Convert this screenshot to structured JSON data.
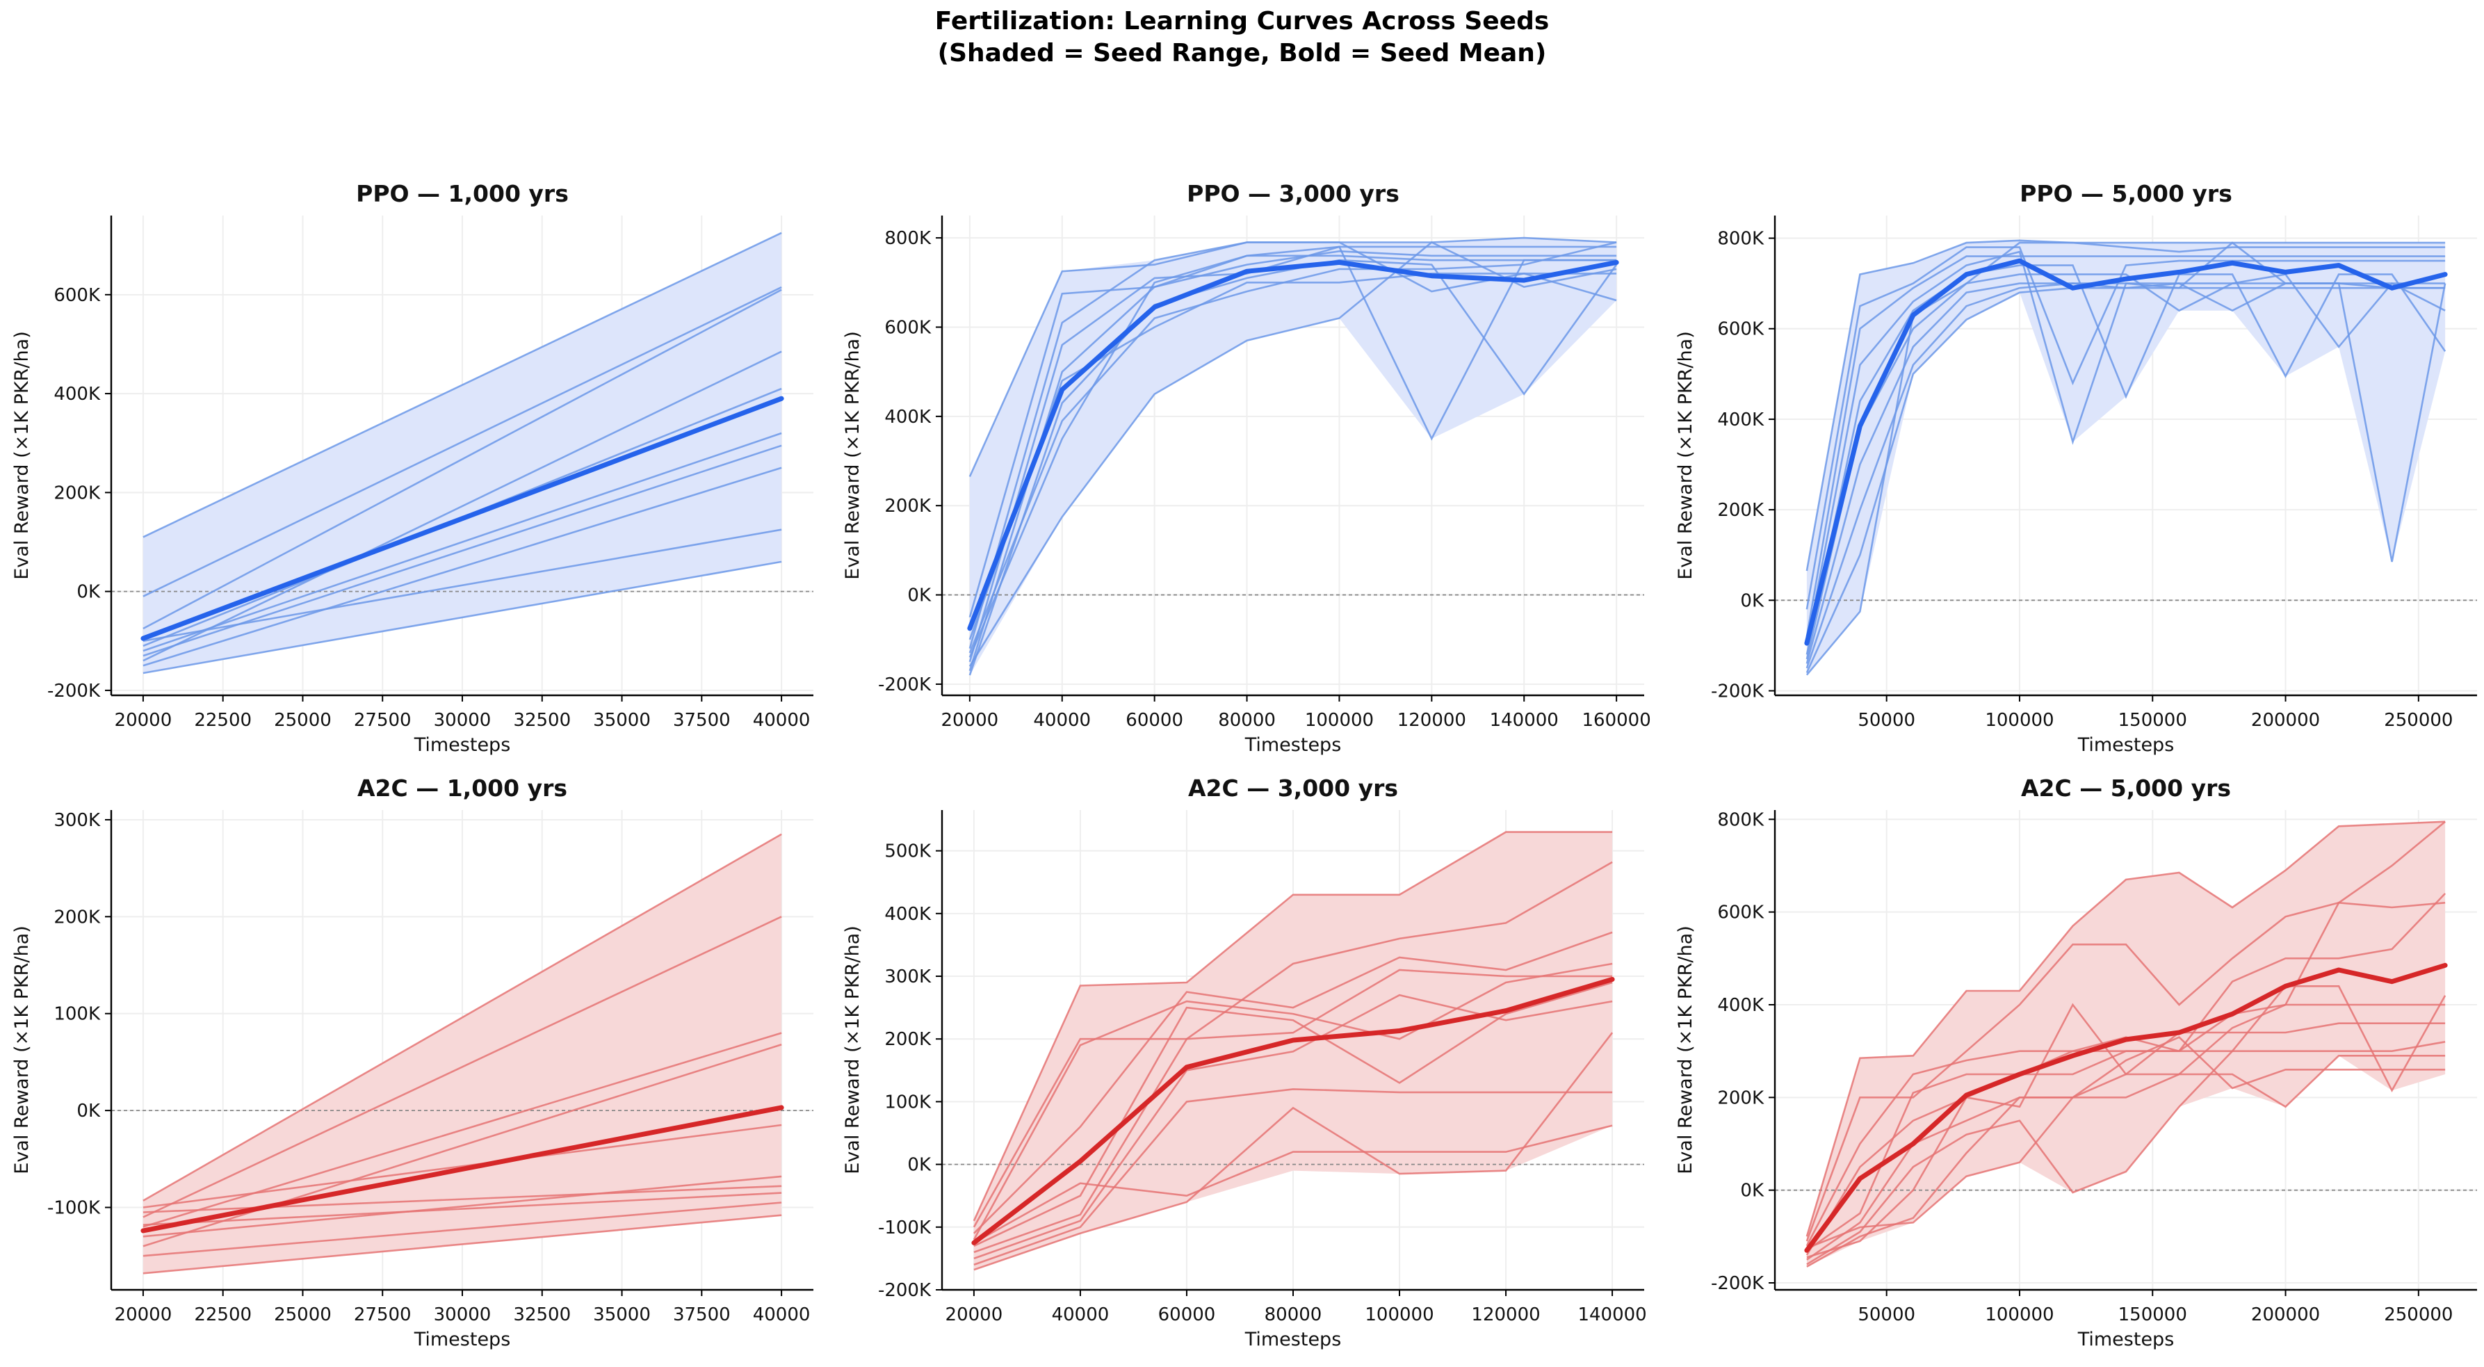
{
  "figure": {
    "title_lines": [
      "Fertilization: Learning Curves Across Seeds",
      "(Shaded = Seed Range, Bold = Seed Mean)"
    ]
  },
  "colors": {
    "ppo_line": "#2563eb",
    "ppo_seed": "#6b98e8",
    "ppo_fill": "#dbe4fb",
    "a2c_line": "#d62728",
    "a2c_seed": "#e57373",
    "a2c_fill": "#f7d6d6",
    "grid": "#eeeeee",
    "zero_line": "#888888"
  },
  "chart_data": [
    {
      "type": "line",
      "algo": "ppo",
      "title": "PPO — 1,000 yrs",
      "xlabel": "Timesteps",
      "ylabel": "Eval Reward (×1K PKR/ha)",
      "xlim": [
        19000,
        41000
      ],
      "ylim": [
        -210000,
        760000
      ],
      "xticks": [
        20000,
        22500,
        25000,
        27500,
        30000,
        32500,
        35000,
        37500,
        40000
      ],
      "xtick_labels": [
        "20000",
        "22500",
        "25000",
        "27500",
        "30000",
        "32500",
        "35000",
        "37500",
        "40000"
      ],
      "yticks": [
        -200000,
        0,
        200000,
        400000,
        600000
      ],
      "ytick_labels": [
        "-200K",
        "0K",
        "200K",
        "400K",
        "600K"
      ],
      "x": [
        20000,
        40000
      ],
      "range_low": [
        -165000,
        60000
      ],
      "range_high": [
        110000,
        725000
      ],
      "mean": [
        -95000,
        390000
      ],
      "seeds": [
        [
          110000,
          725000
        ],
        [
          -10000,
          615000
        ],
        [
          -75000,
          610000
        ],
        [
          -140000,
          485000
        ],
        [
          -110000,
          410000
        ],
        [
          -120000,
          320000
        ],
        [
          -130000,
          295000
        ],
        [
          -150000,
          250000
        ],
        [
          -100000,
          125000
        ],
        [
          -165000,
          60000
        ]
      ]
    },
    {
      "type": "line",
      "algo": "ppo",
      "title": "PPO — 3,000 yrs",
      "xlabel": "Timesteps",
      "ylabel": "Eval Reward (×1K PKR/ha)",
      "xlim": [
        14000,
        166000
      ],
      "ylim": [
        -225000,
        850000
      ],
      "xticks": [
        20000,
        40000,
        60000,
        80000,
        100000,
        120000,
        140000,
        160000
      ],
      "xtick_labels": [
        "20000",
        "40000",
        "60000",
        "80000",
        "100000",
        "120000",
        "140000",
        "160000"
      ],
      "yticks": [
        -200000,
        0,
        200000,
        400000,
        600000,
        800000
      ],
      "ytick_labels": [
        "-200K",
        "0K",
        "200K",
        "400K",
        "600K",
        "800K"
      ],
      "x": [
        20000,
        40000,
        60000,
        80000,
        100000,
        120000,
        140000,
        160000
      ],
      "range_low": [
        -180000,
        175000,
        450000,
        570000,
        620000,
        350000,
        450000,
        660000
      ],
      "range_high": [
        265000,
        725000,
        750000,
        790000,
        790000,
        790000,
        800000,
        790000
      ],
      "mean": [
        -75000,
        460000,
        645000,
        725000,
        745000,
        715000,
        705000,
        745000
      ],
      "seeds": [
        [
          265000,
          725000,
          740000,
          790000,
          790000,
          790000,
          800000,
          790000
        ],
        [
          -50000,
          675000,
          690000,
          760000,
          760000,
          750000,
          750000,
          750000
        ],
        [
          -120000,
          610000,
          750000,
          790000,
          790000,
          680000,
          720000,
          720000
        ],
        [
          -150000,
          560000,
          710000,
          720000,
          780000,
          350000,
          750000,
          750000
        ],
        [
          -100000,
          480000,
          600000,
          700000,
          700000,
          720000,
          720000,
          660000
        ],
        [
          -180000,
          430000,
          650000,
          710000,
          750000,
          740000,
          450000,
          740000
        ],
        [
          -160000,
          175000,
          450000,
          570000,
          620000,
          790000,
          690000,
          730000
        ],
        [
          -130000,
          390000,
          620000,
          680000,
          730000,
          730000,
          740000,
          790000
        ],
        [
          -170000,
          500000,
          690000,
          740000,
          770000,
          760000,
          760000,
          760000
        ],
        [
          -140000,
          350000,
          700000,
          760000,
          780000,
          780000,
          780000,
          780000
        ]
      ]
    },
    {
      "type": "line",
      "algo": "ppo",
      "title": "PPO — 5,000 yrs",
      "xlabel": "Timesteps",
      "ylabel": "Eval Reward (×1K PKR/ha)",
      "xlim": [
        8000,
        272000
      ],
      "ylim": [
        -210000,
        850000
      ],
      "xticks": [
        50000,
        100000,
        150000,
        200000,
        250000
      ],
      "xtick_labels": [
        "50000",
        "100000",
        "150000",
        "200000",
        "250000"
      ],
      "yticks": [
        -200000,
        0,
        200000,
        400000,
        600000,
        800000
      ],
      "ytick_labels": [
        "-200K",
        "0K",
        "200K",
        "400K",
        "600K",
        "800K"
      ],
      "x": [
        20000,
        40000,
        60000,
        80000,
        100000,
        120000,
        140000,
        160000,
        180000,
        200000,
        220000,
        240000,
        260000
      ],
      "range_low": [
        -165000,
        -25000,
        500000,
        620000,
        680000,
        350000,
        450000,
        640000,
        640000,
        495000,
        560000,
        85000,
        550000
      ],
      "range_high": [
        65000,
        720000,
        745000,
        790000,
        795000,
        790000,
        790000,
        790000,
        790000,
        790000,
        790000,
        790000,
        790000
      ],
      "mean": [
        -95000,
        385000,
        630000,
        720000,
        750000,
        690000,
        710000,
        725000,
        745000,
        725000,
        740000,
        690000,
        720000
      ],
      "seeds": [
        [
          65000,
          720000,
          745000,
          790000,
          795000,
          790000,
          790000,
          790000,
          790000,
          790000,
          790000,
          790000,
          790000
        ],
        [
          -20000,
          650000,
          700000,
          780000,
          780000,
          480000,
          740000,
          750000,
          750000,
          750000,
          750000,
          750000,
          750000
        ],
        [
          -80000,
          600000,
          690000,
          760000,
          760000,
          760000,
          760000,
          760000,
          760000,
          760000,
          760000,
          760000,
          760000
        ],
        [
          -100000,
          520000,
          660000,
          740000,
          770000,
          350000,
          700000,
          690000,
          790000,
          700000,
          700000,
          85000,
          700000
        ],
        [
          -120000,
          440000,
          640000,
          720000,
          740000,
          740000,
          450000,
          720000,
          720000,
          495000,
          720000,
          720000,
          550000
        ],
        [
          -130000,
          380000,
          600000,
          700000,
          720000,
          720000,
          720000,
          640000,
          700000,
          720000,
          560000,
          700000,
          640000
        ],
        [
          -140000,
          300000,
          560000,
          680000,
          700000,
          700000,
          700000,
          700000,
          640000,
          700000,
          700000,
          700000,
          700000
        ],
        [
          -150000,
          200000,
          520000,
          650000,
          690000,
          700000,
          690000,
          700000,
          700000,
          700000,
          700000,
          690000,
          690000
        ],
        [
          -160000,
          100000,
          500000,
          620000,
          680000,
          690000,
          690000,
          690000,
          690000,
          690000,
          690000,
          690000,
          690000
        ],
        [
          -165000,
          -25000,
          630000,
          700000,
          790000,
          790000,
          780000,
          770000,
          780000,
          780000,
          780000,
          780000,
          780000
        ]
      ]
    },
    {
      "type": "line",
      "algo": "a2c",
      "title": "A2C — 1,000 yrs",
      "xlabel": "Timesteps",
      "ylabel": "Eval Reward (×1K PKR/ha)",
      "xlim": [
        19000,
        41000
      ],
      "ylim": [
        -185000,
        310000
      ],
      "xticks": [
        20000,
        22500,
        25000,
        27500,
        30000,
        32500,
        35000,
        37500,
        40000
      ],
      "xtick_labels": [
        "20000",
        "22500",
        "25000",
        "27500",
        "30000",
        "32500",
        "35000",
        "37500",
        "40000"
      ],
      "yticks": [
        -100000,
        0,
        100000,
        200000,
        300000
      ],
      "ytick_labels": [
        "-100K",
        "0K",
        "100K",
        "200K",
        "300K"
      ],
      "x": [
        20000,
        40000
      ],
      "range_low": [
        -168000,
        -108000
      ],
      "range_high": [
        -93000,
        285000
      ],
      "mean": [
        -124000,
        3000
      ],
      "seeds": [
        [
          -93000,
          285000
        ],
        [
          -110000,
          200000
        ],
        [
          -120000,
          80000
        ],
        [
          -140000,
          68000
        ],
        [
          -100000,
          -15000
        ],
        [
          -130000,
          -68000
        ],
        [
          -105000,
          -78000
        ],
        [
          -118000,
          -85000
        ],
        [
          -150000,
          -95000
        ],
        [
          -168000,
          -108000
        ]
      ]
    },
    {
      "type": "line",
      "algo": "a2c",
      "title": "A2C — 3,000 yrs",
      "xlabel": "Timesteps",
      "ylabel": "Eval Reward (×1K PKR/ha)",
      "xlim": [
        14000,
        146000
      ],
      "ylim": [
        -200000,
        565000
      ],
      "xticks": [
        20000,
        40000,
        60000,
        80000,
        100000,
        120000,
        140000
      ],
      "xtick_labels": [
        "20000",
        "40000",
        "60000",
        "80000",
        "100000",
        "120000",
        "140000"
      ],
      "yticks": [
        -200000,
        -100000,
        0,
        100000,
        200000,
        300000,
        400000,
        500000
      ],
      "ytick_labels": [
        "-200K",
        "-100K",
        "0K",
        "100K",
        "200K",
        "300K",
        "400K",
        "500K"
      ],
      "x": [
        20000,
        40000,
        60000,
        80000,
        100000,
        120000,
        140000
      ],
      "range_low": [
        -168000,
        -110000,
        -60000,
        -10000,
        -15000,
        -10000,
        62000
      ],
      "range_high": [
        -90000,
        285000,
        290000,
        430000,
        430000,
        530000,
        530000
      ],
      "mean": [
        -125000,
        5000,
        155000,
        198000,
        213000,
        245000,
        295000
      ],
      "seeds": [
        [
          -90000,
          285000,
          290000,
          430000,
          430000,
          530000,
          530000
        ],
        [
          -100000,
          200000,
          200000,
          320000,
          360000,
          385000,
          482000
        ],
        [
          -110000,
          60000,
          275000,
          250000,
          330000,
          310000,
          370000
        ],
        [
          -120000,
          190000,
          260000,
          240000,
          200000,
          290000,
          320000
        ],
        [
          -130000,
          -50000,
          250000,
          230000,
          130000,
          240000,
          290000
        ],
        [
          -140000,
          -80000,
          200000,
          210000,
          310000,
          300000,
          300000
        ],
        [
          -150000,
          -90000,
          150000,
          180000,
          270000,
          230000,
          260000
        ],
        [
          -160000,
          -100000,
          100000,
          120000,
          115000,
          115000,
          115000
        ],
        [
          -168000,
          -110000,
          -60000,
          90000,
          -15000,
          -10000,
          210000
        ],
        [
          -125000,
          -30000,
          -50000,
          20000,
          20000,
          20000,
          62000
        ]
      ]
    },
    {
      "type": "line",
      "algo": "a2c",
      "title": "A2C — 5,000 yrs",
      "xlabel": "Timesteps",
      "ylabel": "Eval Reward (×1K PKR/ha)",
      "xlim": [
        8000,
        272000
      ],
      "ylim": [
        -215000,
        820000
      ],
      "xticks": [
        50000,
        100000,
        150000,
        200000,
        250000
      ],
      "xtick_labels": [
        "50000",
        "100000",
        "150000",
        "200000",
        "250000"
      ],
      "yticks": [
        -200000,
        0,
        200000,
        400000,
        600000,
        800000
      ],
      "ytick_labels": [
        "-200K",
        "0K",
        "200K",
        "400K",
        "600K",
        "800K"
      ],
      "x": [
        20000,
        40000,
        60000,
        80000,
        100000,
        120000,
        140000,
        160000,
        180000,
        200000,
        220000,
        240000,
        260000
      ],
      "range_low": [
        -165000,
        -110000,
        -70000,
        30000,
        60000,
        -5000,
        40000,
        180000,
        220000,
        180000,
        290000,
        215000,
        250000
      ],
      "range_high": [
        -100000,
        285000,
        290000,
        430000,
        430000,
        570000,
        670000,
        685000,
        610000,
        690000,
        785000,
        790000,
        795000
      ],
      "mean": [
        -130000,
        25000,
        100000,
        205000,
        250000,
        290000,
        325000,
        340000,
        380000,
        440000,
        475000,
        450000,
        485000
      ],
      "seeds": [
        [
          -100000,
          285000,
          290000,
          430000,
          430000,
          570000,
          670000,
          685000,
          610000,
          690000,
          785000,
          790000,
          795000
        ],
        [
          -110000,
          200000,
          200000,
          300000,
          400000,
          530000,
          530000,
          400000,
          500000,
          590000,
          620000,
          610000,
          620000
        ],
        [
          -120000,
          100000,
          250000,
          280000,
          300000,
          300000,
          330000,
          300000,
          450000,
          500000,
          500000,
          520000,
          640000
        ],
        [
          -130000,
          -50000,
          210000,
          250000,
          250000,
          250000,
          300000,
          300000,
          300000,
          440000,
          440000,
          215000,
          420000
        ],
        [
          -140000,
          50000,
          150000,
          200000,
          180000,
          400000,
          250000,
          250000,
          350000,
          400000,
          400000,
          400000,
          400000
        ],
        [
          -150000,
          -70000,
          100000,
          150000,
          200000,
          200000,
          250000,
          340000,
          340000,
          340000,
          360000,
          360000,
          360000
        ],
        [
          -160000,
          -90000,
          50000,
          120000,
          150000,
          -5000,
          40000,
          180000,
          300000,
          300000,
          300000,
          300000,
          320000
        ],
        [
          -165000,
          -100000,
          -60000,
          80000,
          200000,
          200000,
          200000,
          250000,
          250000,
          180000,
          290000,
          290000,
          290000
        ],
        [
          -125000,
          -80000,
          -70000,
          30000,
          60000,
          200000,
          280000,
          330000,
          220000,
          260000,
          260000,
          260000,
          260000
        ],
        [
          -145000,
          -110000,
          0,
          200000,
          250000,
          300000,
          300000,
          300000,
          380000,
          400000,
          620000,
          700000,
          795000
        ]
      ]
    }
  ]
}
